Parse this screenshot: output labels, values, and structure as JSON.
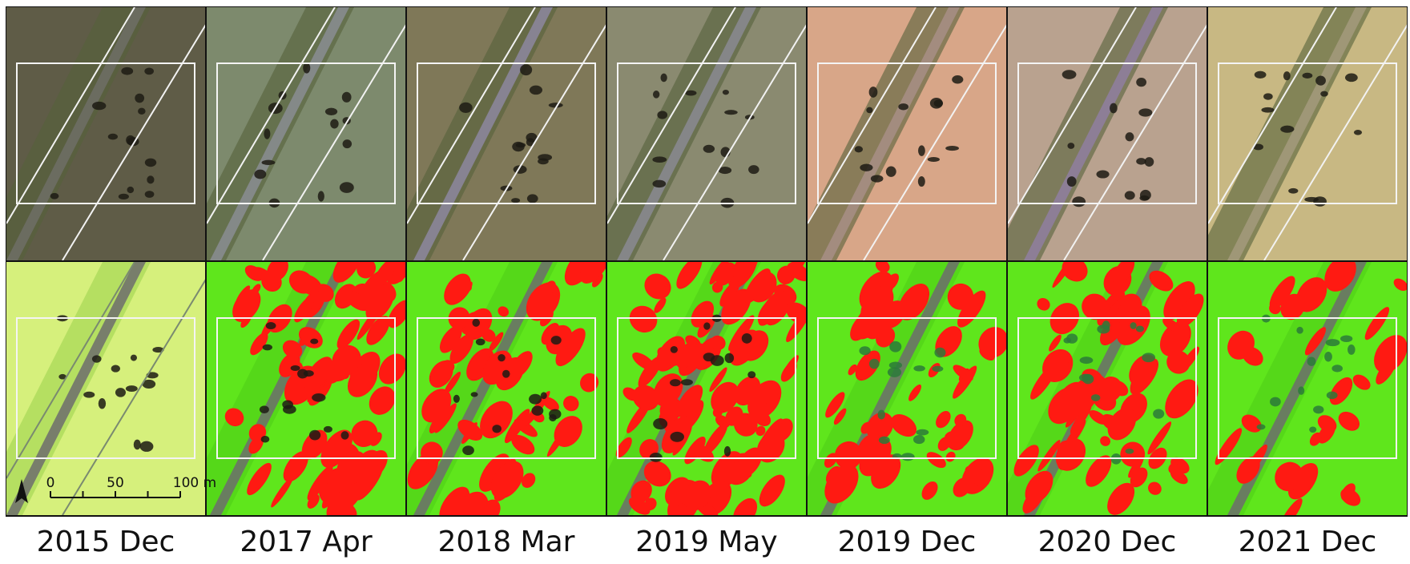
{
  "panels": [
    {
      "label": "2015 Dec"
    },
    {
      "label": "2017 Apr"
    },
    {
      "label": "2018 Mar"
    },
    {
      "label": "2019 May"
    },
    {
      "label": "2019 Dec"
    },
    {
      "label": "2020 Dec"
    },
    {
      "label": "2021 Dec"
    }
  ],
  "scale_bar": {
    "ticks": [
      "0",
      "50",
      "100 m"
    ]
  }
}
